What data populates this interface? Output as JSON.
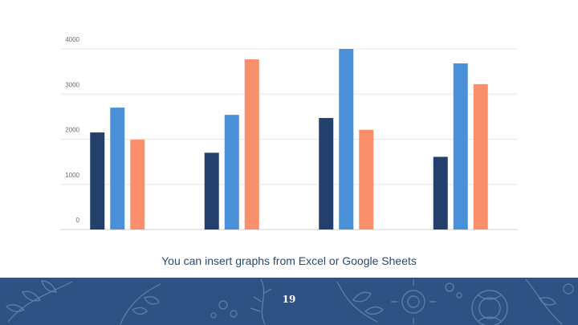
{
  "chart_data": {
    "type": "bar",
    "categories": [
      "",
      "",
      "",
      ""
    ],
    "series": [
      {
        "values": [
          2150,
          1700,
          2470,
          1610
        ],
        "color": "#22406b"
      },
      {
        "values": [
          2700,
          2540,
          4000,
          3680
        ],
        "color": "#4a90d9"
      },
      {
        "values": [
          1990,
          3770,
          2210,
          3220
        ],
        "color": "#fa8f6c"
      }
    ],
    "ylim": [
      0,
      4000
    ],
    "yticks": [
      "0",
      "1000",
      "2000",
      "3000",
      "4000"
    ],
    "grid": true,
    "title": "",
    "xlabel": "",
    "ylabel": ""
  },
  "caption": "You can insert graphs from Excel or Google Sheets",
  "page_number": "19",
  "colors": {
    "footer_background": "#2e5283",
    "caption_text": "#264a75"
  }
}
